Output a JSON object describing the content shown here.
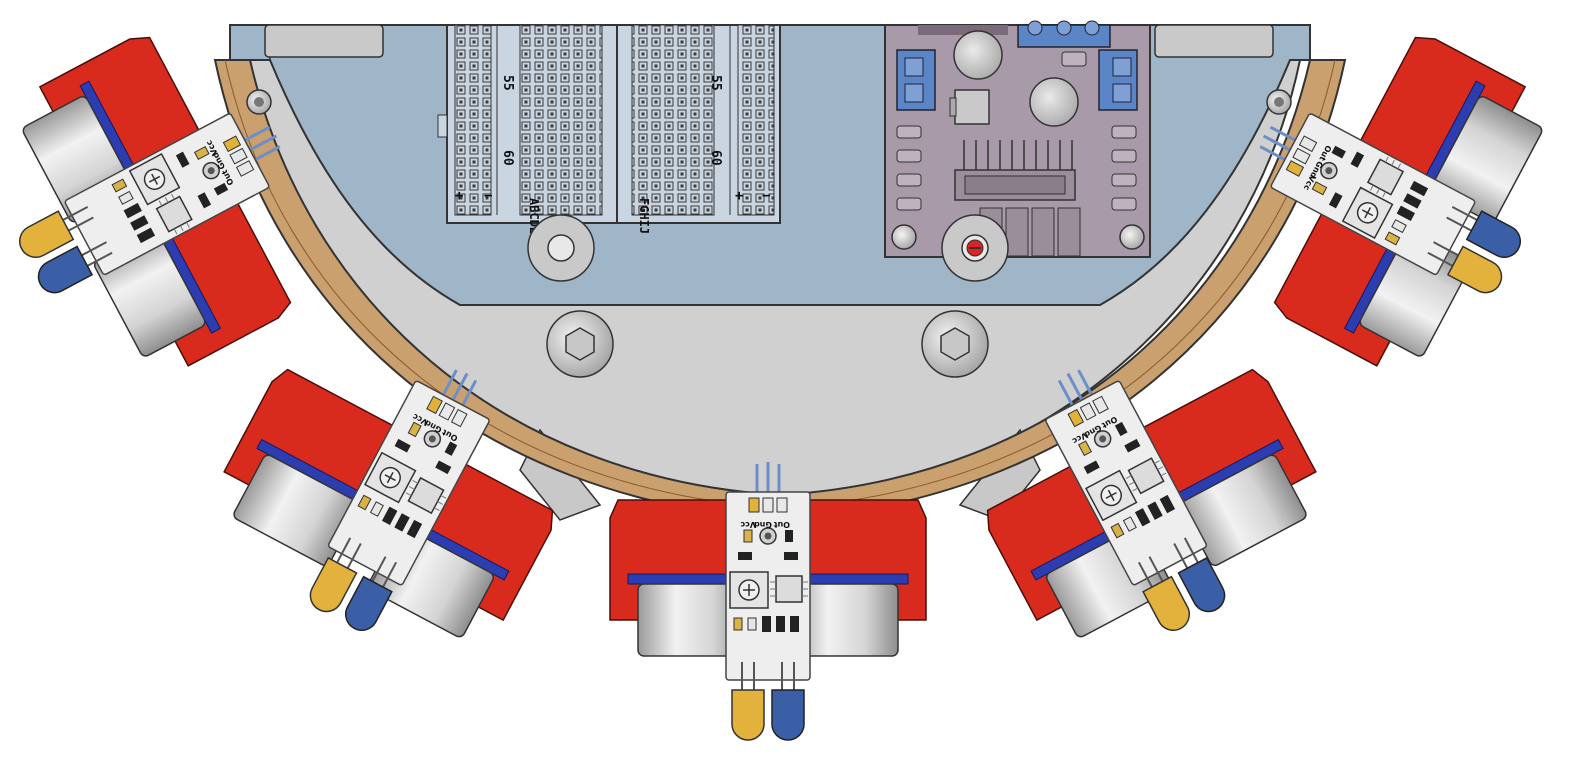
{
  "scene": {
    "description_visible_text_only": true
  },
  "breadboard": {
    "row_numbers": [
      "60",
      "55"
    ],
    "left_row_letters": "ABCDE",
    "right_row_letters": "FGHIJ",
    "rail_symbols": [
      "+",
      "−"
    ]
  },
  "sensor_module": {
    "pin_labels": [
      "Out",
      "Gnd",
      "Vcc"
    ]
  },
  "colors": {
    "chassis_plate": "#9fb5c8",
    "mount_bracket": "#d92a1e",
    "ring": "#c9a06e",
    "base_gray": "#cfcfcf",
    "motor_driver_board": "#a99aa9",
    "terminal_blocks": "#5a86c8",
    "ultrasonic_can": "#dcdcdc",
    "sensor_pcb": "#eeeeee",
    "led_yellow": "#e3b23c",
    "led_blue": "#3a5fa6",
    "blue_strip": "#2b3db0"
  }
}
